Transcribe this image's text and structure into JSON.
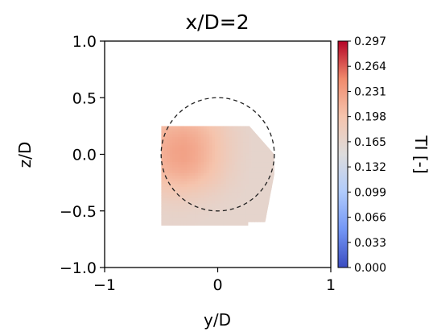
{
  "chart_data": {
    "type": "heatmap",
    "title": "x/D=2",
    "xlabel": "y/D",
    "ylabel": "z/D",
    "xlim": [
      -1.0,
      1.0
    ],
    "ylim": [
      -1.0,
      1.0
    ],
    "xticks": [
      "−1",
      "0",
      "1"
    ],
    "xtick_values": [
      -1,
      0,
      1
    ],
    "yticks": [
      "1.0",
      "0.5",
      "0.0",
      "−0.5",
      "−1.0"
    ],
    "ytick_values": [
      1.0,
      0.5,
      0.0,
      -0.5,
      -1.0
    ],
    "grid": false,
    "colormap": {
      "name": "coolwarm",
      "min": 0.0,
      "max": 0.297,
      "label": "TI [-]",
      "ticks": [
        "0.297",
        "0.264",
        "0.231",
        "0.198",
        "0.165",
        "0.132",
        "0.099",
        "0.066",
        "0.033",
        "0.000"
      ],
      "tick_values": [
        0.297,
        0.264,
        0.231,
        0.198,
        0.165,
        0.132,
        0.099,
        0.066,
        0.033,
        0.0
      ],
      "stops": [
        "#3b4cc0",
        "#7396f5",
        "#b0cbfc",
        "#dddcdc",
        "#f5c4ad",
        "#f08a6c",
        "#b40426"
      ]
    },
    "circle": {
      "center": [
        0.0,
        0.0
      ],
      "radius": 0.5,
      "style": "dashed"
    },
    "data_region_polygon": [
      [
        -0.5,
        0.25
      ],
      [
        0.28,
        0.25
      ],
      [
        0.5,
        0.0
      ],
      [
        0.5,
        -0.18
      ],
      [
        0.42,
        -0.6
      ],
      [
        0.27,
        -0.6
      ],
      [
        0.27,
        -0.63
      ],
      [
        -0.5,
        -0.63
      ]
    ],
    "ti_field": {
      "description": "TI values sampled on a regular grid inside the data region",
      "y_points": [
        -0.5,
        -0.4,
        -0.3,
        -0.2,
        -0.1,
        0.0,
        0.1,
        0.2,
        0.3,
        0.4,
        0.5
      ],
      "z_points": [
        0.25,
        0.15,
        0.05,
        -0.05,
        -0.15,
        -0.25,
        -0.35,
        -0.45,
        -0.55,
        -0.63
      ],
      "values": [
        [
          0.205,
          0.21,
          0.212,
          0.208,
          0.2,
          0.19,
          0.178,
          0.17,
          0.166,
          0.165,
          0.165
        ],
        [
          0.212,
          0.22,
          0.223,
          0.218,
          0.208,
          0.195,
          0.181,
          0.172,
          0.166,
          0.165,
          0.165
        ],
        [
          0.215,
          0.225,
          0.228,
          0.222,
          0.21,
          0.196,
          0.182,
          0.172,
          0.166,
          0.165,
          0.165
        ],
        [
          0.214,
          0.224,
          0.227,
          0.221,
          0.209,
          0.195,
          0.181,
          0.171,
          0.166,
          0.165,
          0.165
        ],
        [
          0.208,
          0.216,
          0.219,
          0.214,
          0.203,
          0.191,
          0.178,
          0.17,
          0.165,
          0.165,
          0.165
        ],
        [
          0.196,
          0.202,
          0.204,
          0.2,
          0.192,
          0.184,
          0.174,
          0.168,
          0.165,
          0.165,
          0.165
        ],
        [
          0.182,
          0.186,
          0.187,
          0.184,
          0.179,
          0.174,
          0.169,
          0.166,
          0.165,
          0.165,
          0.165
        ],
        [
          0.172,
          0.174,
          0.174,
          0.172,
          0.17,
          0.168,
          0.166,
          0.165,
          0.165,
          0.165,
          0.165
        ],
        [
          0.167,
          0.168,
          0.168,
          0.167,
          0.166,
          0.165,
          0.165,
          0.165,
          0.165,
          0.165,
          0.165
        ],
        [
          0.166,
          0.166,
          0.166,
          0.166,
          0.165,
          0.165,
          0.165,
          0.165,
          0.165,
          0.165,
          0.165
        ]
      ]
    }
  }
}
